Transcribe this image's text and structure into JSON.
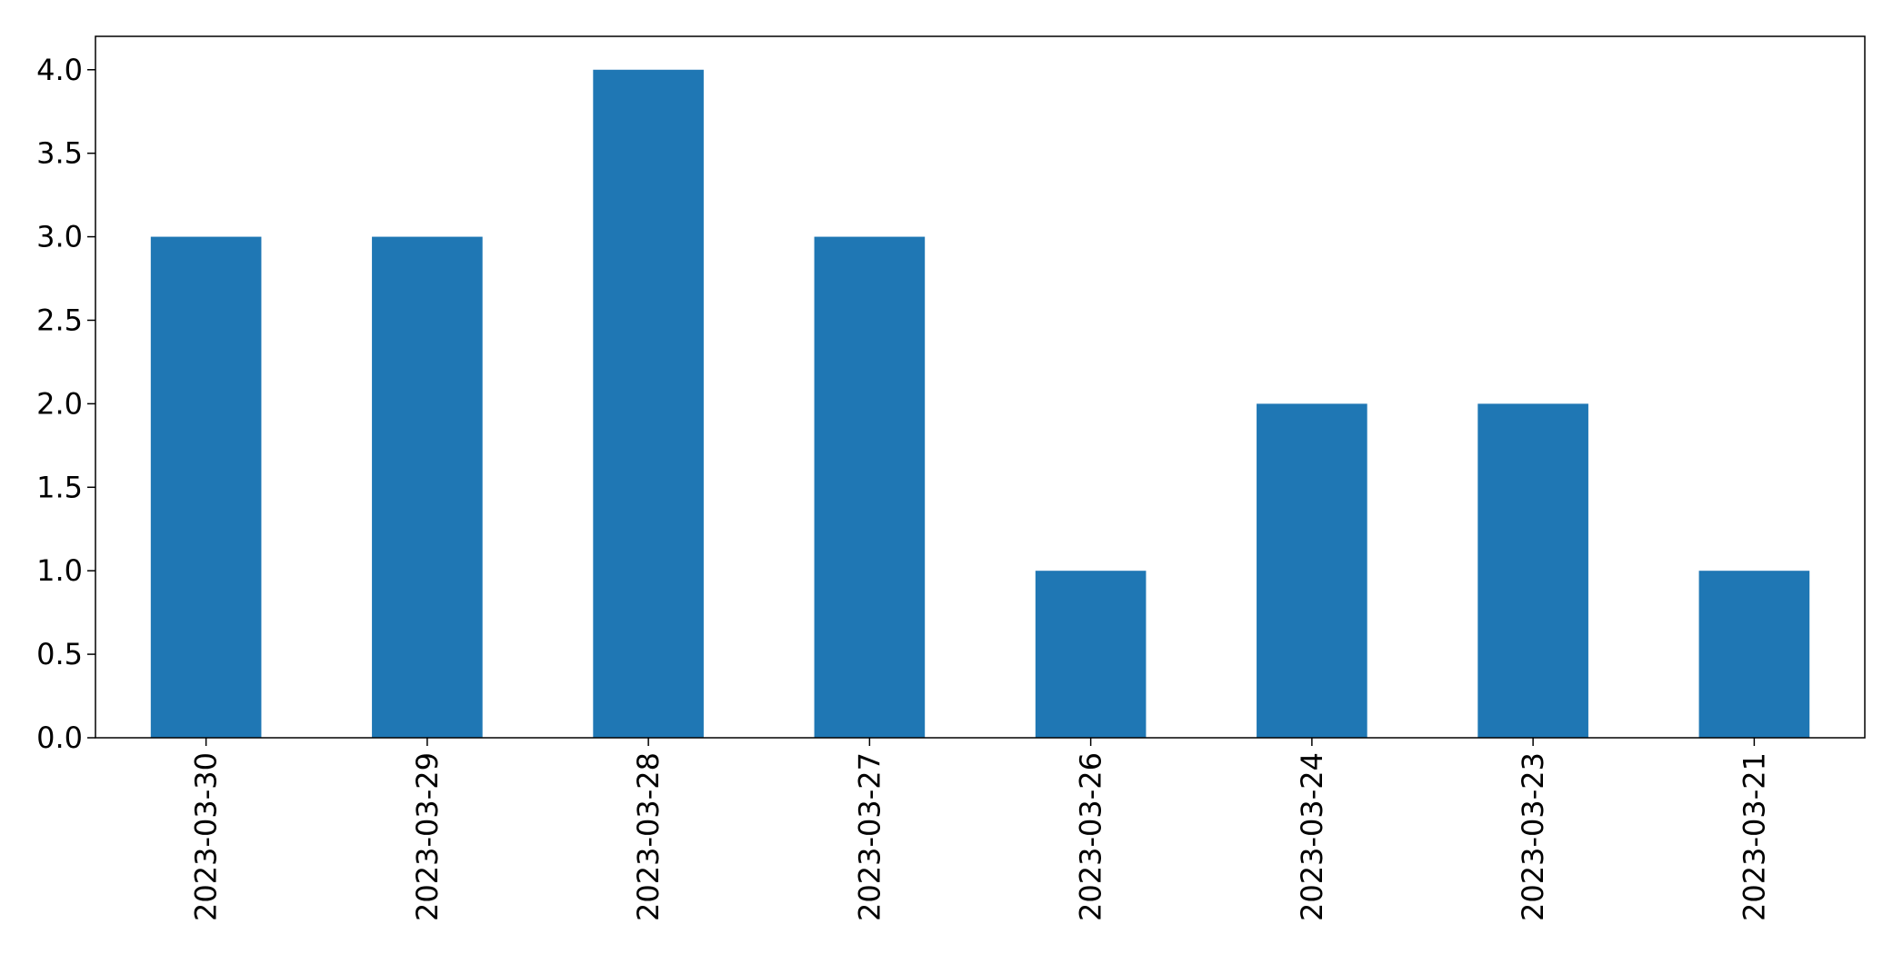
{
  "chart_data": {
    "type": "bar",
    "title": "",
    "xlabel": "",
    "ylabel": "",
    "categories": [
      "2023-03-30",
      "2023-03-29",
      "2023-03-28",
      "2023-03-27",
      "2023-03-26",
      "2023-03-24",
      "2023-03-23",
      "2023-03-21"
    ],
    "values": [
      3,
      3,
      4,
      3,
      1,
      2,
      2,
      1
    ],
    "ylim": [
      0,
      4.2
    ],
    "yticks": [
      "0.0",
      "0.5",
      "1.0",
      "1.5",
      "2.0",
      "2.5",
      "3.0",
      "3.5",
      "4.0"
    ],
    "grid": false,
    "legend": "none",
    "colors": {
      "bar": "#1f77b4"
    }
  }
}
